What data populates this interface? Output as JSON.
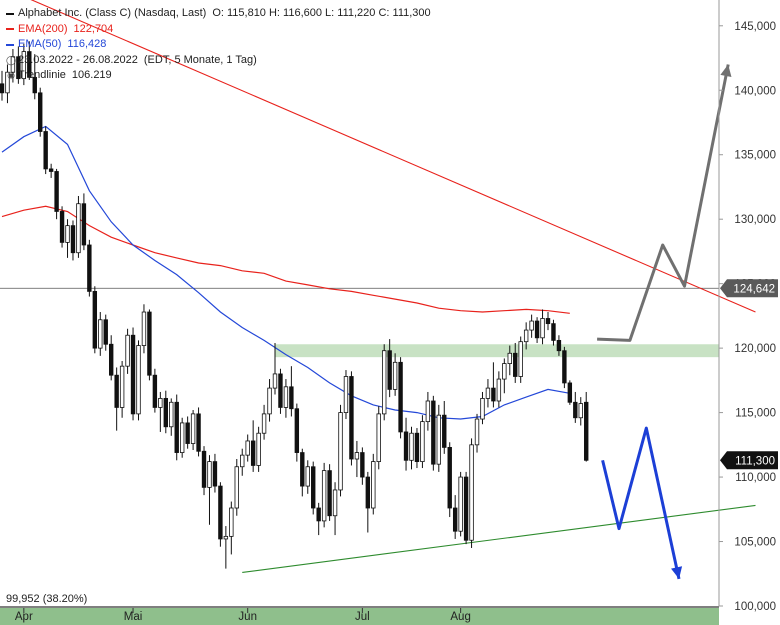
{
  "legend": {
    "title": "Alphabet Inc. (Class C) (Nasdaq, Last)",
    "ohlc": "O: 115,810  H: 116,600  L: 111,220  C: 111,300",
    "ema200_label": "EMA(200)",
    "ema200_value": "122,704",
    "ema50_label": "EMA(50)",
    "ema50_value": "116,428",
    "range_text": "23.03.2022 - 26.08.2022",
    "range_info": "(EDT, 5 Monate, 1 Tag)",
    "trend_label": "Trendlinie",
    "trend_value": "106.219"
  },
  "fib_label": "99,952 (38.20%)",
  "price_tags": {
    "resistance": "124,642",
    "last": "111,300"
  },
  "colors": {
    "ema200": "#e8221c",
    "ema50": "#2448d8",
    "up": "#ffffff",
    "down": "#111111",
    "trend_support": "#2e8b2e",
    "zone": "#c8e2c4",
    "bull_arrow": "#707070",
    "bear_arrow": "#1c3fd6",
    "axis_band": "#8fbf8c"
  },
  "chart_data": {
    "type": "candlestick",
    "ylim": [
      100,
      147
    ],
    "y_ticks": [
      "145,000",
      "140,000",
      "135,000",
      "130,000",
      "125,000",
      "120,000",
      "115,000",
      "110,000",
      "105,000",
      "100,000"
    ],
    "y_tick_values": [
      145,
      140,
      135,
      130,
      125,
      120,
      115,
      110,
      105,
      100
    ],
    "x_ticks": [
      {
        "label": "Apr",
        "index": 4
      },
      {
        "label": "Mai",
        "index": 24
      },
      {
        "label": "Jun",
        "index": 45
      },
      {
        "label": "Jul",
        "index": 66
      },
      {
        "label": "Aug",
        "index": 84
      }
    ],
    "candles": [
      [
        140.5,
        141.5,
        139.2,
        139.8
      ],
      [
        139.8,
        142.0,
        139.0,
        141.4
      ],
      [
        141.4,
        143.2,
        140.6,
        142.6
      ],
      [
        142.6,
        143.4,
        140.5,
        140.9
      ],
      [
        140.9,
        143.6,
        140.4,
        143.0
      ],
      [
        143.0,
        143.8,
        140.8,
        141.0
      ],
      [
        141.0,
        142.8,
        139.3,
        139.8
      ],
      [
        139.8,
        140.2,
        136.4,
        136.8
      ],
      [
        136.8,
        137.2,
        133.5,
        133.9
      ],
      [
        133.9,
        134.3,
        133.2,
        133.7
      ],
      [
        133.7,
        133.9,
        130.0,
        130.6
      ],
      [
        130.6,
        131.0,
        127.8,
        128.2
      ],
      [
        128.2,
        130.0,
        127.0,
        129.5
      ],
      [
        129.5,
        129.9,
        126.8,
        127.4
      ],
      [
        127.4,
        131.8,
        127.0,
        131.2
      ],
      [
        131.2,
        132.0,
        127.6,
        128.0
      ],
      [
        128.0,
        128.4,
        124.0,
        124.4
      ],
      [
        124.4,
        124.8,
        119.6,
        120.0
      ],
      [
        120.0,
        122.8,
        119.4,
        122.2
      ],
      [
        122.2,
        122.6,
        119.8,
        120.3
      ],
      [
        120.3,
        121.0,
        117.5,
        117.9
      ],
      [
        117.9,
        118.5,
        113.6,
        115.4
      ],
      [
        115.4,
        119.0,
        114.6,
        118.6
      ],
      [
        118.6,
        121.5,
        118.0,
        121.0
      ],
      [
        121.0,
        121.6,
        114.4,
        114.9
      ],
      [
        114.9,
        120.6,
        114.4,
        120.2
      ],
      [
        120.2,
        123.4,
        119.6,
        122.8
      ],
      [
        122.8,
        123.0,
        117.5,
        117.9
      ],
      [
        117.9,
        118.4,
        115.0,
        115.4
      ],
      [
        115.4,
        116.6,
        113.5,
        116.1
      ],
      [
        116.1,
        116.7,
        113.4,
        113.9
      ],
      [
        113.9,
        116.1,
        113.2,
        115.8
      ],
      [
        115.8,
        116.4,
        111.3,
        111.9
      ],
      [
        111.9,
        114.6,
        111.5,
        114.2
      ],
      [
        114.2,
        114.7,
        112.2,
        112.6
      ],
      [
        112.6,
        115.2,
        112.1,
        114.9
      ],
      [
        114.9,
        115.4,
        111.6,
        112.0
      ],
      [
        112.0,
        112.4,
        108.6,
        109.2
      ],
      [
        109.2,
        111.7,
        106.3,
        111.2
      ],
      [
        111.2,
        111.8,
        108.8,
        109.3
      ],
      [
        109.3,
        109.6,
        104.6,
        105.2
      ],
      [
        105.2,
        106.2,
        102.9,
        105.4
      ],
      [
        105.4,
        108.1,
        104.0,
        107.6
      ],
      [
        107.6,
        111.4,
        107.0,
        110.8
      ],
      [
        110.8,
        112.2,
        110.1,
        111.7
      ],
      [
        111.7,
        113.3,
        111.2,
        112.8
      ],
      [
        112.8,
        114.4,
        110.4,
        110.9
      ],
      [
        110.9,
        113.9,
        110.4,
        113.4
      ],
      [
        113.4,
        115.6,
        112.9,
        114.9
      ],
      [
        114.9,
        117.6,
        114.3,
        116.9
      ],
      [
        116.9,
        120.4,
        116.4,
        118.0
      ],
      [
        118.0,
        118.4,
        114.9,
        115.4
      ],
      [
        115.4,
        117.6,
        114.6,
        117.0
      ],
      [
        117.0,
        118.6,
        114.7,
        115.3
      ],
      [
        115.3,
        115.7,
        111.2,
        111.9
      ],
      [
        111.9,
        112.2,
        108.5,
        109.3
      ],
      [
        109.3,
        111.3,
        108.7,
        110.8
      ],
      [
        110.8,
        111.2,
        107.1,
        107.6
      ],
      [
        107.6,
        108.0,
        105.5,
        106.6
      ],
      [
        106.6,
        111.1,
        106.1,
        110.5
      ],
      [
        110.5,
        111.0,
        106.6,
        107.0
      ],
      [
        107.0,
        109.6,
        105.5,
        109.0
      ],
      [
        109.0,
        115.6,
        108.5,
        115.0
      ],
      [
        115.0,
        118.3,
        114.5,
        117.8
      ],
      [
        117.8,
        118.2,
        110.9,
        111.4
      ],
      [
        111.4,
        112.8,
        110.0,
        111.9
      ],
      [
        111.9,
        112.3,
        109.4,
        110.0
      ],
      [
        110.0,
        110.4,
        105.7,
        107.6
      ],
      [
        107.6,
        111.8,
        107.1,
        111.2
      ],
      [
        111.2,
        115.5,
        110.6,
        114.9
      ],
      [
        114.9,
        120.3,
        114.4,
        119.8
      ],
      [
        119.8,
        120.7,
        116.2,
        116.8
      ],
      [
        116.8,
        119.6,
        116.3,
        118.9
      ],
      [
        118.9,
        119.3,
        113.0,
        113.5
      ],
      [
        113.5,
        114.6,
        110.5,
        111.3
      ],
      [
        111.3,
        113.9,
        110.6,
        113.4
      ],
      [
        113.4,
        113.8,
        110.7,
        111.2
      ],
      [
        111.2,
        114.8,
        110.7,
        114.3
      ],
      [
        114.3,
        116.6,
        113.6,
        115.9
      ],
      [
        115.9,
        116.3,
        110.5,
        111.0
      ],
      [
        111.0,
        115.6,
        110.4,
        114.8
      ],
      [
        114.8,
        115.9,
        111.8,
        112.3
      ],
      [
        112.3,
        112.7,
        106.9,
        107.6
      ],
      [
        107.6,
        108.6,
        105.2,
        105.8
      ],
      [
        105.8,
        110.4,
        105.4,
        110.0
      ],
      [
        110.0,
        110.4,
        104.8,
        105.1
      ],
      [
        105.1,
        113.0,
        104.5,
        112.5
      ],
      [
        112.5,
        114.9,
        111.9,
        114.5
      ],
      [
        114.5,
        116.6,
        114.1,
        116.1
      ],
      [
        116.1,
        117.6,
        115.4,
        116.9
      ],
      [
        116.9,
        118.9,
        115.4,
        115.9
      ],
      [
        115.9,
        118.2,
        115.4,
        117.6
      ],
      [
        117.6,
        119.2,
        116.5,
        118.8
      ],
      [
        118.8,
        120.2,
        117.9,
        119.6
      ],
      [
        119.6,
        120.4,
        117.3,
        117.8
      ],
      [
        117.8,
        120.9,
        117.3,
        120.5
      ],
      [
        120.5,
        122.0,
        119.9,
        121.4
      ],
      [
        121.4,
        122.6,
        120.8,
        122.1
      ],
      [
        122.1,
        122.4,
        120.4,
        120.8
      ],
      [
        120.8,
        123.0,
        120.3,
        122.3
      ],
      [
        122.3,
        122.8,
        121.4,
        121.9
      ],
      [
        121.9,
        122.2,
        120.2,
        120.6
      ],
      [
        120.6,
        121.0,
        119.4,
        119.8
      ],
      [
        119.8,
        120.1,
        116.9,
        117.3
      ],
      [
        117.3,
        117.5,
        115.6,
        115.8
      ],
      [
        115.8,
        116.6,
        114.2,
        114.6
      ],
      [
        114.6,
        116.2,
        114.0,
        115.7
      ],
      [
        115.8,
        116.6,
        111.2,
        111.3
      ]
    ],
    "ema200": [
      [
        0,
        130.2
      ],
      [
        4,
        130.7
      ],
      [
        8,
        131.0
      ],
      [
        12,
        130.6
      ],
      [
        16,
        129.5
      ],
      [
        20,
        128.6
      ],
      [
        24,
        128.0
      ],
      [
        28,
        127.4
      ],
      [
        32,
        127.0
      ],
      [
        36,
        126.6
      ],
      [
        40,
        126.4
      ],
      [
        44,
        126.0
      ],
      [
        48,
        125.8
      ],
      [
        52,
        125.2
      ],
      [
        56,
        124.9
      ],
      [
        60,
        124.6
      ],
      [
        64,
        124.4
      ],
      [
        68,
        124.1
      ],
      [
        72,
        123.8
      ],
      [
        76,
        123.5
      ],
      [
        80,
        123.1
      ],
      [
        84,
        122.9
      ],
      [
        88,
        122.8
      ],
      [
        92,
        122.9
      ],
      [
        96,
        123.0
      ],
      [
        100,
        122.9
      ],
      [
        104,
        122.7
      ]
    ],
    "ema50": [
      [
        0,
        135.2
      ],
      [
        4,
        136.4
      ],
      [
        8,
        137.2
      ],
      [
        12,
        135.8
      ],
      [
        16,
        132.2
      ],
      [
        20,
        129.8
      ],
      [
        24,
        128.0
      ],
      [
        28,
        126.8
      ],
      [
        32,
        125.7
      ],
      [
        36,
        124.3
      ],
      [
        40,
        122.8
      ],
      [
        44,
        121.6
      ],
      [
        48,
        120.6
      ],
      [
        52,
        119.5
      ],
      [
        56,
        118.5
      ],
      [
        60,
        117.3
      ],
      [
        64,
        116.3
      ],
      [
        68,
        115.6
      ],
      [
        72,
        115.2
      ],
      [
        76,
        115.0
      ],
      [
        80,
        114.6
      ],
      [
        84,
        114.5
      ],
      [
        88,
        114.7
      ],
      [
        92,
        115.6
      ],
      [
        96,
        116.2
      ],
      [
        100,
        116.8
      ],
      [
        104,
        116.5
      ]
    ],
    "resistance_line": [
      [
        0,
        148.0
      ],
      [
        138,
        122.8
      ]
    ],
    "horizontal_level": 124.642,
    "support_zone": [
      119.3,
      120.3
    ],
    "support_trendline": [
      [
        44,
        102.6
      ],
      [
        138,
        107.8
      ]
    ],
    "fib_level": 99.952,
    "bullish_scenario": [
      [
        109,
        120.7
      ],
      [
        115,
        120.6
      ],
      [
        121,
        128.0
      ],
      [
        125,
        124.8
      ],
      [
        133,
        142.0
      ]
    ],
    "bearish_scenario": [
      [
        110,
        111.3
      ],
      [
        113,
        106.0
      ],
      [
        118,
        113.8
      ],
      [
        124,
        102.1
      ]
    ],
    "last_price": 111.3
  }
}
